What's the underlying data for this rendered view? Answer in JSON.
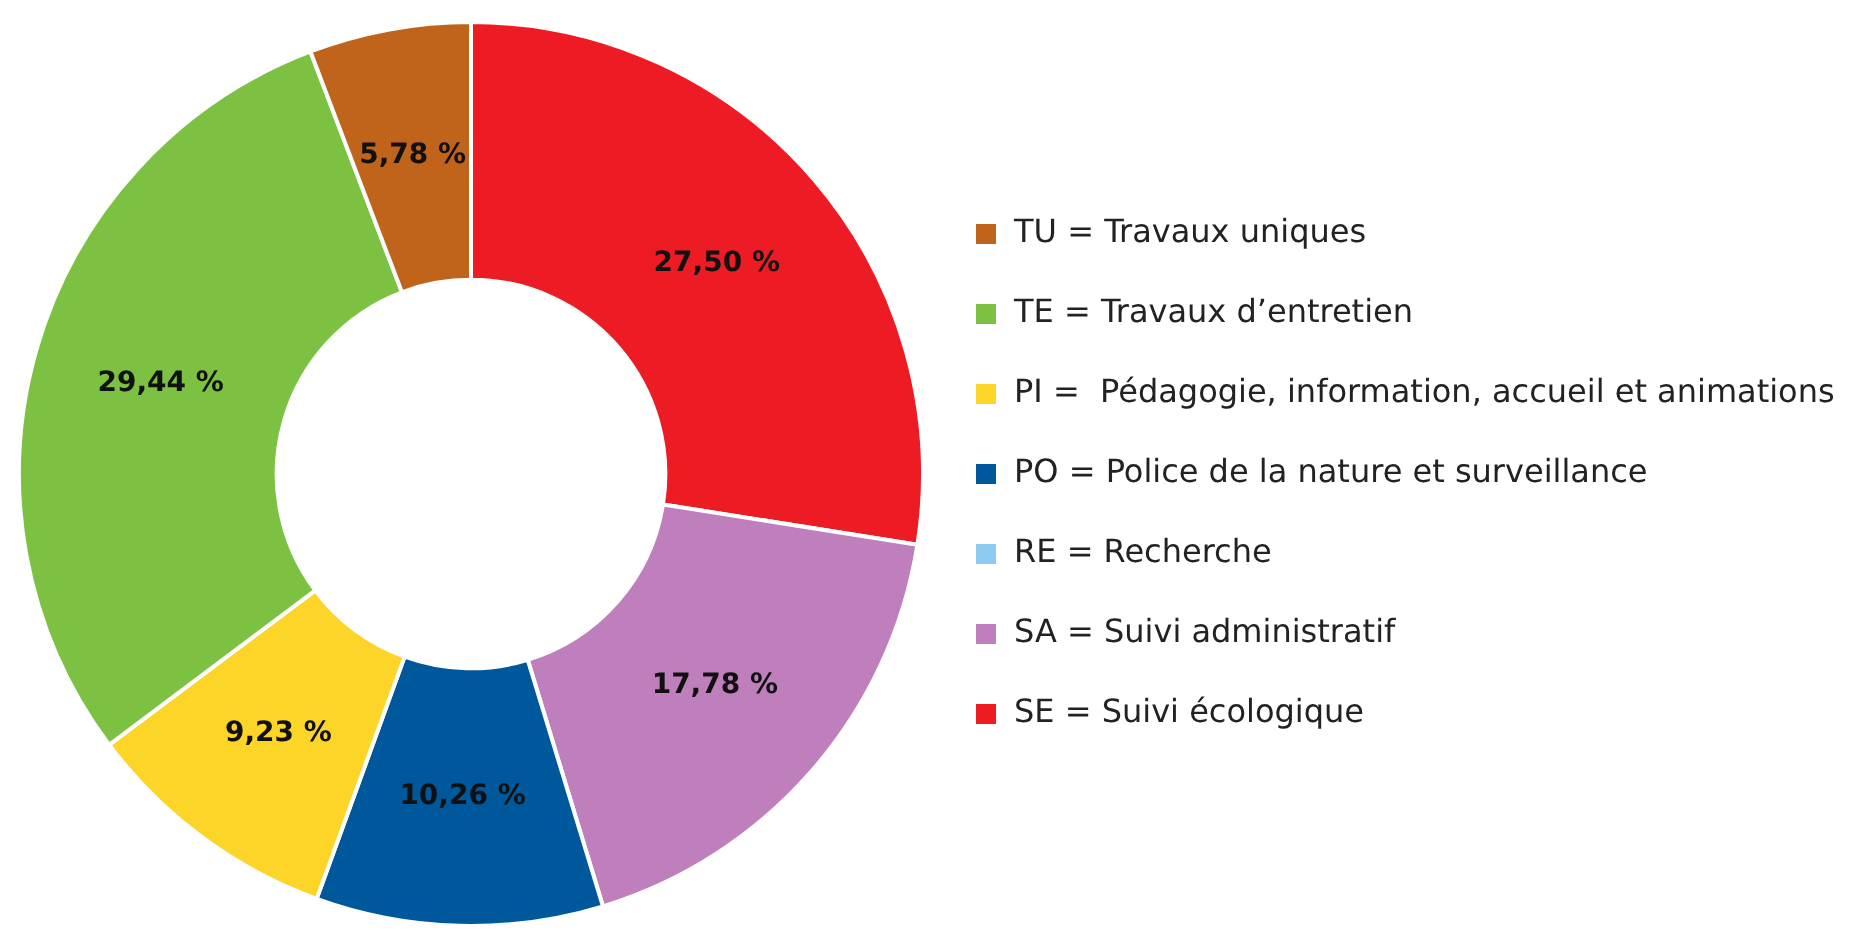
{
  "chart_data": {
    "type": "donut",
    "categories": [
      "SE = Suivi écologique",
      "SA = Suivi administratif",
      "RE = Recherche",
      "PO = Police de la nature et surveillance",
      "PI =  Pédagogie, information, accueil et animations",
      "TE = Travaux d’entretien",
      "TU = Travaux uniques"
    ],
    "values": [
      27.5,
      17.78,
      0,
      10.26,
      9.23,
      29.44,
      5.78
    ],
    "colors": [
      "#ed1c24",
      "#bf7fbc",
      "#8ecbf0",
      "#00589c",
      "#fdd428",
      "#7dc143",
      "#c0641c"
    ],
    "value_labels": [
      "27,50 %",
      "17,78 %",
      null,
      "10,26 %",
      "9,23 %",
      "29,44 %",
      "5,78 %"
    ],
    "legend": "right"
  }
}
